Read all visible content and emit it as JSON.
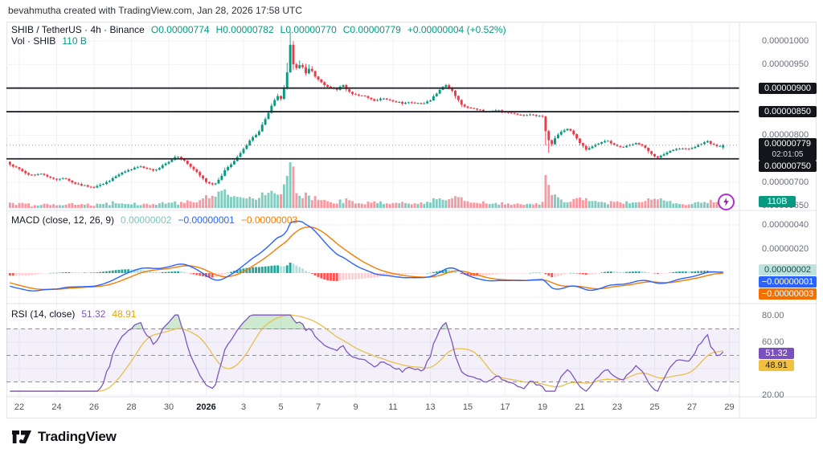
{
  "attribution": "bevahmutha created with TradingView.com, Jan 28, 2026 17:58 UTC",
  "main_legend": {
    "title": "SHIB / TetherUS · 4h · Binance",
    "values": [
      "O0.00000774",
      "H0.00000782",
      "L0.00000770",
      "C0.00000779",
      "+0.00000004 (+0.52%)"
    ]
  },
  "vol_legend": {
    "label": "Vol · SHIB",
    "value": "110 B"
  },
  "macd_legend": {
    "label": "MACD (close, 12, 26, 9)",
    "hist": "0.00000002",
    "macd": "−0.00000001",
    "signal": "−0.00000003"
  },
  "rsi_legend": {
    "label": "RSI (14, close)",
    "rsi": "51.32",
    "ma": "48.91"
  },
  "price_axis": {
    "ticks": [
      {
        "v": 1000,
        "label": "0.00001000"
      },
      {
        "v": 950,
        "label": "0.00000950"
      },
      {
        "v": 800,
        "label": "0.00000800"
      },
      {
        "v": 700,
        "label": "0.00000700"
      },
      {
        "v": 650,
        "label": "0.00000650"
      }
    ],
    "level_labels": [
      {
        "v": 900,
        "label": "0.00000900"
      },
      {
        "v": 850,
        "label": "0.00000850"
      },
      {
        "v": 750,
        "label": "0.00000750"
      }
    ],
    "last": {
      "price": "0.00000779",
      "countdown": "02:01:05"
    },
    "volume_label": "110B"
  },
  "macd_axis": {
    "ticks": [
      {
        "v": 40,
        "label": "0.00000040"
      },
      {
        "v": 20,
        "label": "0.00000020"
      },
      {
        "v": -20,
        "label": "−0.00000020"
      }
    ],
    "hist_label": "0.00000002",
    "macd_label": "−0.00000001",
    "signal_label": "−0.00000003"
  },
  "rsi_axis": {
    "ticks": [
      {
        "v": 80,
        "label": "80.00"
      },
      {
        "v": 60,
        "label": "60.00"
      },
      {
        "v": 40,
        "label": "40.00"
      },
      {
        "v": 20,
        "label": "20.00"
      }
    ],
    "rsi_label": "51.32",
    "ma_label": "48.91"
  },
  "time_axis": {
    "labels": [
      {
        "t": 0,
        "label": "22"
      },
      {
        "t": 2,
        "label": "24"
      },
      {
        "t": 4,
        "label": "26"
      },
      {
        "t": 6,
        "label": "28"
      },
      {
        "t": 8,
        "label": "30"
      },
      {
        "t": 10,
        "label": "2026",
        "bold": true
      },
      {
        "t": 12,
        "label": "3"
      },
      {
        "t": 14,
        "label": "5"
      },
      {
        "t": 16,
        "label": "7"
      },
      {
        "t": 18,
        "label": "9"
      },
      {
        "t": 20,
        "label": "11"
      },
      {
        "t": 22,
        "label": "13"
      },
      {
        "t": 24,
        "label": "15"
      },
      {
        "t": 26,
        "label": "17"
      },
      {
        "t": 28,
        "label": "19"
      },
      {
        "t": 30,
        "label": "21"
      },
      {
        "t": 32,
        "label": "23"
      },
      {
        "t": 34,
        "label": "25"
      },
      {
        "t": 36,
        "label": "27"
      },
      {
        "t": 38,
        "label": "29"
      }
    ]
  },
  "footer": {
    "brand": "TradingView"
  },
  "colors": {
    "up": "#089981",
    "down": "#f23645",
    "vol_up": "rgba(8,153,129,0.5)",
    "vol_down": "rgba(242,54,69,0.5)",
    "macd_line": "#2962ff",
    "signal_line": "#f57c00",
    "hist_pos_grow": "#26a69a",
    "hist_pos_fall": "#b2dfdb",
    "hist_neg_fall": "#ff5252",
    "hist_neg_grow": "#ffcdd2",
    "rsi_line": "#7e57c2",
    "rsi_ma_line": "#e8bf4f",
    "rsi_band_fill": "rgba(126,87,194,0.09)",
    "overbought_fill": "rgba(76,175,80,0.28)",
    "level_line": "#22252e",
    "grid": "#f0f2f8",
    "separator": "#e0e3eb",
    "dotted_price": "#9598a1",
    "accent_bolt": "#a835c9"
  },
  "chart_data": {
    "type": "candlestick",
    "title": "SHIB / TetherUS · 4h · Binance",
    "symbol": "SHIB/USDT",
    "interval": "4h",
    "exchange": "Binance",
    "price_unit": "1e-8 USDT",
    "ohlc_last": {
      "o": 7.74e-06,
      "h": 7.82e-06,
      "l": 7.7e-06,
      "c": 7.79e-06,
      "change": 4e-08,
      "change_pct": 0.52
    },
    "price_levels": [
      9e-06,
      8.5e-06,
      7.5e-06
    ],
    "last_price": 7.79e-06,
    "price_axis_range": [
      6.5e-06,
      1e-05
    ],
    "time_domain": {
      "start_day": -0.5,
      "end_day": 37.8,
      "candles_per_day": 6,
      "start_date": "Dec 22",
      "end_date": "Jan 29"
    },
    "warmup_path": [
      [
        -4.5,
        802
      ],
      [
        -3.6,
        794
      ],
      [
        -2.7,
        785
      ],
      [
        -1.8,
        773
      ],
      [
        -1.1,
        755
      ]
    ],
    "close_path": [
      [
        -0.5,
        738
      ],
      [
        0,
        728
      ],
      [
        0.4,
        718
      ],
      [
        0.8,
        714
      ],
      [
        1.2,
        720
      ],
      [
        1.6,
        711
      ],
      [
        2,
        706
      ],
      [
        2.4,
        709
      ],
      [
        2.8,
        701
      ],
      [
        3.2,
        696
      ],
      [
        3.6,
        692
      ],
      [
        4,
        690
      ],
      [
        4.4,
        696
      ],
      [
        4.8,
        703
      ],
      [
        5.2,
        713
      ],
      [
        5.6,
        722
      ],
      [
        6,
        728
      ],
      [
        6.4,
        734
      ],
      [
        6.8,
        730
      ],
      [
        7.2,
        724
      ],
      [
        7.6,
        734
      ],
      [
        8,
        744
      ],
      [
        8.4,
        755
      ],
      [
        8.8,
        748
      ],
      [
        9.2,
        733
      ],
      [
        9.6,
        718
      ],
      [
        10,
        702
      ],
      [
        10.4,
        694
      ],
      [
        10.7,
        706
      ],
      [
        11,
        726
      ],
      [
        11.5,
        745
      ],
      [
        12,
        770
      ],
      [
        12.4,
        792
      ],
      [
        12.8,
        806
      ],
      [
        13.2,
        838
      ],
      [
        13.5,
        862
      ],
      [
        13.8,
        886
      ],
      [
        14,
        876
      ],
      [
        14.2,
        904
      ],
      [
        14.35,
        936
      ],
      [
        14.5,
        992
      ],
      [
        14.65,
        950
      ],
      [
        14.85,
        942
      ],
      [
        15.1,
        952
      ],
      [
        15.3,
        930
      ],
      [
        15.55,
        944
      ],
      [
        15.8,
        926
      ],
      [
        16.1,
        915
      ],
      [
        16.4,
        905
      ],
      [
        16.7,
        900
      ],
      [
        17,
        896
      ],
      [
        17.3,
        908
      ],
      [
        17.6,
        892
      ],
      [
        18,
        886
      ],
      [
        18.5,
        882
      ],
      [
        19,
        874
      ],
      [
        19.5,
        878
      ],
      [
        20,
        872
      ],
      [
        20.5,
        868
      ],
      [
        21,
        870
      ],
      [
        21.5,
        866
      ],
      [
        22,
        874
      ],
      [
        22.3,
        888
      ],
      [
        22.6,
        900
      ],
      [
        22.85,
        908
      ],
      [
        23.1,
        898
      ],
      [
        23.4,
        880
      ],
      [
        23.7,
        864
      ],
      [
        24,
        858
      ],
      [
        24.5,
        854
      ],
      [
        25,
        850
      ],
      [
        25.5,
        854
      ],
      [
        26,
        848
      ],
      [
        26.5,
        845
      ],
      [
        27,
        842
      ],
      [
        27.5,
        844
      ],
      [
        28,
        839
      ],
      [
        28.2,
        802
      ],
      [
        28.45,
        778
      ],
      [
        28.65,
        792
      ],
      [
        28.85,
        802
      ],
      [
        29.1,
        810
      ],
      [
        29.4,
        814
      ],
      [
        29.7,
        800
      ],
      [
        30,
        784
      ],
      [
        30.3,
        770
      ],
      [
        30.7,
        777
      ],
      [
        31,
        782
      ],
      [
        31.4,
        790
      ],
      [
        31.8,
        780
      ],
      [
        32.2,
        774
      ],
      [
        32.6,
        778
      ],
      [
        33,
        784
      ],
      [
        33.4,
        778
      ],
      [
        33.8,
        762
      ],
      [
        34.1,
        750
      ],
      [
        34.4,
        759
      ],
      [
        34.8,
        766
      ],
      [
        35.3,
        772
      ],
      [
        35.8,
        770
      ],
      [
        36.3,
        778
      ],
      [
        36.8,
        788
      ],
      [
        37.1,
        780
      ],
      [
        37.4,
        776
      ],
      [
        37.8,
        779
      ]
    ],
    "volume_boost": [
      [
        -0.5,
        0
      ],
      [
        9.6,
        1
      ],
      [
        10.2,
        9
      ],
      [
        10.8,
        13
      ],
      [
        11.4,
        7
      ],
      [
        12,
        3
      ],
      [
        13.4,
        5
      ],
      [
        14,
        9
      ],
      [
        14.35,
        8
      ],
      [
        14.5,
        34
      ],
      [
        14.7,
        10
      ],
      [
        15.2,
        6
      ],
      [
        16,
        3
      ],
      [
        17,
        2
      ],
      [
        22,
        3
      ],
      [
        23,
        4
      ],
      [
        27.9,
        1
      ],
      [
        28.2,
        13
      ],
      [
        28.5,
        6
      ],
      [
        29,
        3
      ],
      [
        33.8,
        3
      ],
      [
        34.2,
        6
      ],
      [
        35,
        2
      ],
      [
        36.5,
        2
      ],
      [
        37.4,
        3
      ],
      [
        37.8,
        4
      ]
    ],
    "indicators": {
      "macd": {
        "fast": 12,
        "slow": 26,
        "signal": 9,
        "last": {
          "histogram": 2e-08,
          "macd": -1e-08,
          "signal": -3e-08
        },
        "axis_range_shown": [
          -2e-07,
          4e-07
        ]
      },
      "rsi": {
        "length": 14,
        "last": 51.32,
        "ma_last": 48.91,
        "bands": [
          70,
          50,
          30
        ],
        "axis_ticks": [
          80,
          60,
          40,
          20
        ]
      }
    },
    "volume_last_label": "110B"
  }
}
